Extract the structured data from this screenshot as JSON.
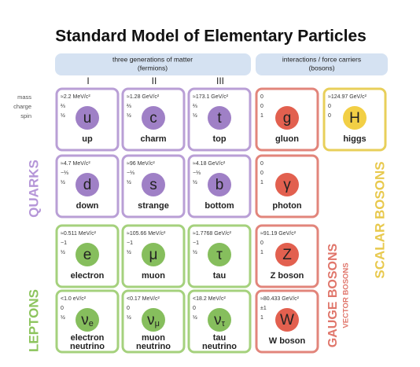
{
  "title": "Standard Model of Elementary Particles",
  "fermions_header": [
    "three generations of matter",
    "(fermions)"
  ],
  "bosons_header": [
    "interactions / force carriers",
    "(bosons)"
  ],
  "generations": [
    "I",
    "II",
    "III"
  ],
  "property_labels": [
    "mass",
    "charge",
    "spin"
  ],
  "particles": [
    {
      "symbol": "u",
      "name": [
        "up"
      ],
      "mass": "≈2.2 MeV/c²",
      "charge": "⅔",
      "spin": "½"
    },
    {
      "symbol": "c",
      "name": [
        "charm"
      ],
      "mass": "≈1.28 GeV/c²",
      "charge": "⅔",
      "spin": "½"
    },
    {
      "symbol": "t",
      "name": [
        "top"
      ],
      "mass": "≈173.1 GeV/c²",
      "charge": "⅔",
      "spin": "½"
    },
    {
      "symbol": "g",
      "name": [
        "gluon"
      ],
      "mass": "0",
      "charge": "0",
      "spin": "1"
    },
    {
      "symbol": "H",
      "name": [
        "higgs"
      ],
      "mass": "≈124.97 GeV/c²",
      "charge": "0",
      "spin": "0"
    },
    {
      "symbol": "d",
      "name": [
        "down"
      ],
      "mass": "≈4.7 MeV/c²",
      "charge": "−⅓",
      "spin": "½"
    },
    {
      "symbol": "s",
      "name": [
        "strange"
      ],
      "mass": "≈96 MeV/c²",
      "charge": "−⅓",
      "spin": "½"
    },
    {
      "symbol": "b",
      "name": [
        "bottom"
      ],
      "mass": "≈4.18 GeV/c²",
      "charge": "−⅓",
      "spin": "½"
    },
    {
      "symbol": "γ",
      "name": [
        "photon"
      ],
      "mass": "0",
      "charge": "0",
      "spin": "1"
    },
    {
      "symbol": "e",
      "name": [
        "electron"
      ],
      "mass": "≈0.511 MeV/c²",
      "charge": "−1",
      "spin": "½"
    },
    {
      "symbol": "μ",
      "name": [
        "muon"
      ],
      "mass": "≈105.66 MeV/c²",
      "charge": "−1",
      "spin": "½"
    },
    {
      "symbol": "τ",
      "name": [
        "tau"
      ],
      "mass": "≈1.7768 GeV/c²",
      "charge": "−1",
      "spin": "½"
    },
    {
      "symbol": "Z",
      "name": [
        "Z boson"
      ],
      "mass": "≈91.19 GeV/c²",
      "charge": "0",
      "spin": "1"
    },
    {
      "symbol": "ν",
      "symbol_sub": "e",
      "name": [
        "electron",
        "neutrino"
      ],
      "mass": "<1.0 eV/c²",
      "charge": "0",
      "spin": "½"
    },
    {
      "symbol": "ν",
      "symbol_sub": "μ",
      "name": [
        "muon",
        "neutrino"
      ],
      "mass": "<0.17 MeV/c²",
      "charge": "0",
      "spin": "½"
    },
    {
      "symbol": "ν",
      "symbol_sub": "τ",
      "name": [
        "tau",
        "neutrino"
      ],
      "mass": "<18.2 MeV/c²",
      "charge": "0",
      "spin": "½"
    },
    {
      "symbol": "W",
      "name": [
        "W boson"
      ],
      "mass": "≈80.433 GeV/c²",
      "charge": "±1",
      "spin": "1"
    }
  ],
  "group_labels": {
    "quarks": "QUARKS",
    "leptons": "LEPTONS",
    "gauge": "GAUGE BOSONS",
    "vector": "VECTOR BOSONS",
    "scalar": "SCALAR BOSONS"
  }
}
